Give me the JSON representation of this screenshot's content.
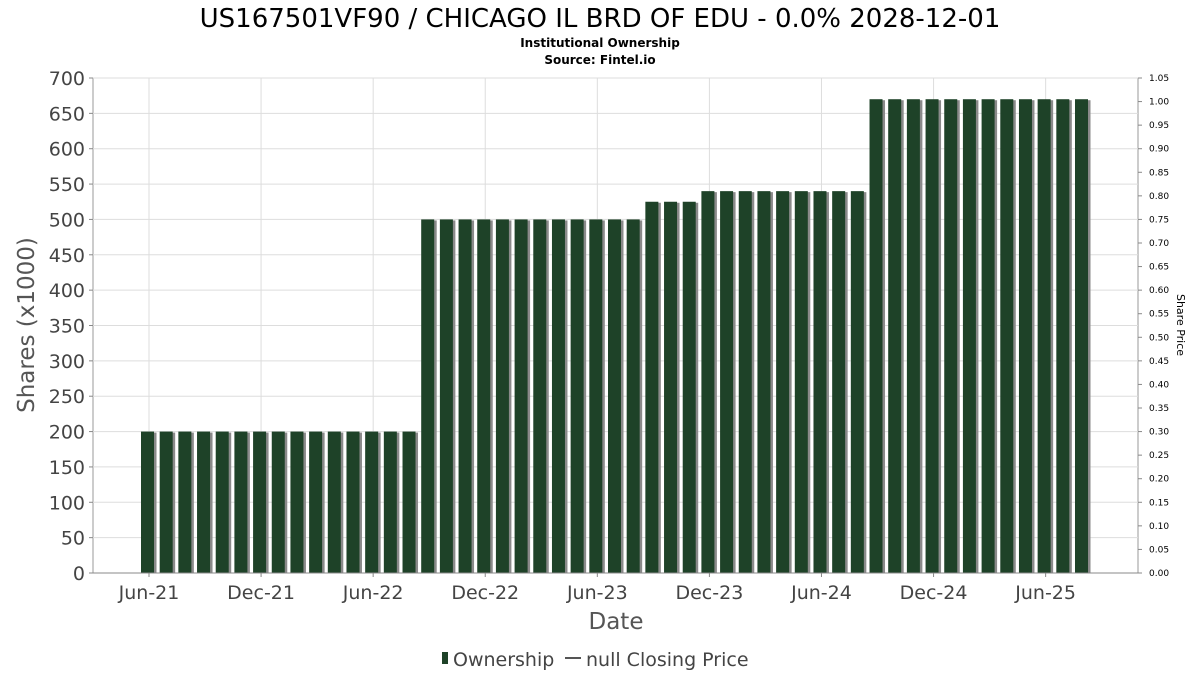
{
  "chart_data": {
    "type": "bar",
    "title": "US167501VF90 / CHICAGO IL BRD OF EDU - 0.0% 2028-12-01",
    "subtitle": "Institutional Ownership",
    "source": "Source: Fintel.io",
    "xlabel": "Date",
    "ylabel": "Shares (x1000)",
    "y2label": "Share Price",
    "ylim": [
      0,
      700
    ],
    "y2lim": [
      0,
      1.05
    ],
    "yticks": [
      "0",
      "50",
      "100",
      "150",
      "200",
      "250",
      "300",
      "350",
      "400",
      "450",
      "500",
      "550",
      "600",
      "650",
      "700"
    ],
    "y2ticks": [
      "0.00",
      "0.05",
      "0.10",
      "0.15",
      "0.20",
      "0.25",
      "0.30",
      "0.35",
      "0.40",
      "0.45",
      "0.50",
      "0.55",
      "0.60",
      "0.65",
      "0.70",
      "0.75",
      "0.80",
      "0.85",
      "0.90",
      "0.95",
      "1.00",
      "1.05"
    ],
    "xticks": [
      "Jun-21",
      "Dec-21",
      "Jun-22",
      "Dec-22",
      "Jun-23",
      "Dec-23",
      "Jun-24",
      "Dec-24",
      "Jun-25"
    ],
    "grid": true,
    "legend_position": "bottom",
    "colors": {
      "bar": "#1e4228",
      "bar_shadow": "#8a8a8a",
      "grid": "#dddddd"
    },
    "series": [
      {
        "name": "Ownership",
        "values": [
          200,
          200,
          200,
          200,
          200,
          200,
          200,
          200,
          200,
          200,
          200,
          200,
          200,
          200,
          200,
          500,
          500,
          500,
          500,
          500,
          500,
          500,
          500,
          500,
          500,
          500,
          500,
          525,
          525,
          525,
          540,
          540,
          540,
          540,
          540,
          540,
          540,
          540,
          540,
          670,
          670,
          670,
          670,
          670,
          670,
          670,
          670,
          670,
          670,
          670,
          670
        ]
      }
    ],
    "legend": [
      {
        "label": "Ownership",
        "marker": "bar"
      },
      {
        "label": "null Closing Price",
        "marker": "line"
      }
    ]
  }
}
